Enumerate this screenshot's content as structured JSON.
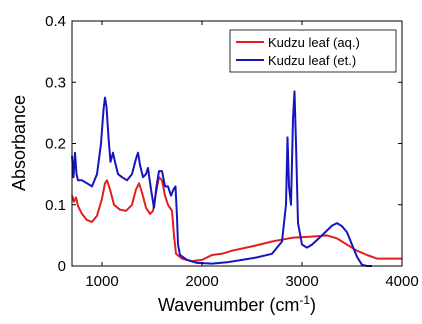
{
  "chart_data": {
    "type": "line",
    "title": "",
    "xlabel": "Wavenumber (cm",
    "xlabel_sup": "-1",
    "xlabel_suffix": ")",
    "ylabel": "Absorbance",
    "xlim": [
      700,
      4000
    ],
    "ylim": [
      0,
      0.4
    ],
    "xticks": [
      1000,
      2000,
      3000,
      4000
    ],
    "xtick_labels": [
      "1000",
      "2000",
      "3000",
      "4000"
    ],
    "yticks": [
      0,
      0.1,
      0.2,
      0.3,
      0.4
    ],
    "ytick_labels": [
      "0",
      "0.1",
      "0.2",
      "0.3",
      "0.4"
    ],
    "grid": false,
    "legend_position": "top-right",
    "series": [
      {
        "name": "Kudzu leaf (aq.)",
        "color": "#e02020",
        "points": [
          [
            700,
            0.115
          ],
          [
            720,
            0.105
          ],
          [
            740,
            0.112
          ],
          [
            760,
            0.098
          ],
          [
            800,
            0.085
          ],
          [
            850,
            0.075
          ],
          [
            900,
            0.072
          ],
          [
            950,
            0.082
          ],
          [
            1000,
            0.11
          ],
          [
            1030,
            0.135
          ],
          [
            1050,
            0.14
          ],
          [
            1080,
            0.125
          ],
          [
            1120,
            0.1
          ],
          [
            1180,
            0.092
          ],
          [
            1240,
            0.09
          ],
          [
            1300,
            0.1
          ],
          [
            1340,
            0.125
          ],
          [
            1370,
            0.135
          ],
          [
            1400,
            0.12
          ],
          [
            1440,
            0.095
          ],
          [
            1480,
            0.085
          ],
          [
            1510,
            0.09
          ],
          [
            1540,
            0.12
          ],
          [
            1570,
            0.145
          ],
          [
            1600,
            0.14
          ],
          [
            1630,
            0.115
          ],
          [
            1660,
            0.1
          ],
          [
            1700,
            0.09
          ],
          [
            1720,
            0.05
          ],
          [
            1740,
            0.02
          ],
          [
            1800,
            0.012
          ],
          [
            1900,
            0.008
          ],
          [
            2000,
            0.01
          ],
          [
            2100,
            0.018
          ],
          [
            2200,
            0.02
          ],
          [
            2300,
            0.025
          ],
          [
            2500,
            0.032
          ],
          [
            2700,
            0.04
          ],
          [
            2900,
            0.046
          ],
          [
            3100,
            0.048
          ],
          [
            3250,
            0.05
          ],
          [
            3350,
            0.045
          ],
          [
            3450,
            0.035
          ],
          [
            3550,
            0.025
          ],
          [
            3650,
            0.018
          ],
          [
            3750,
            0.012
          ],
          [
            3850,
            0.012
          ],
          [
            4000,
            0.012
          ]
        ]
      },
      {
        "name": "Kudzu leaf (et.)",
        "color": "#1515c0",
        "points": [
          [
            700,
            0.18
          ],
          [
            715,
            0.145
          ],
          [
            730,
            0.185
          ],
          [
            745,
            0.15
          ],
          [
            760,
            0.14
          ],
          [
            800,
            0.14
          ],
          [
            850,
            0.135
          ],
          [
            900,
            0.13
          ],
          [
            950,
            0.15
          ],
          [
            990,
            0.2
          ],
          [
            1015,
            0.255
          ],
          [
            1030,
            0.275
          ],
          [
            1045,
            0.26
          ],
          [
            1065,
            0.21
          ],
          [
            1085,
            0.17
          ],
          [
            1110,
            0.185
          ],
          [
            1130,
            0.17
          ],
          [
            1160,
            0.15
          ],
          [
            1200,
            0.145
          ],
          [
            1250,
            0.14
          ],
          [
            1300,
            0.15
          ],
          [
            1340,
            0.175
          ],
          [
            1360,
            0.185
          ],
          [
            1380,
            0.165
          ],
          [
            1410,
            0.145
          ],
          [
            1440,
            0.15
          ],
          [
            1460,
            0.16
          ],
          [
            1490,
            0.125
          ],
          [
            1520,
            0.095
          ],
          [
            1545,
            0.13
          ],
          [
            1570,
            0.155
          ],
          [
            1600,
            0.155
          ],
          [
            1630,
            0.13
          ],
          [
            1660,
            0.13
          ],
          [
            1690,
            0.115
          ],
          [
            1715,
            0.125
          ],
          [
            1735,
            0.13
          ],
          [
            1750,
            0.08
          ],
          [
            1760,
            0.035
          ],
          [
            1780,
            0.018
          ],
          [
            1850,
            0.01
          ],
          [
            1950,
            0.005
          ],
          [
            2100,
            0.004
          ],
          [
            2250,
            0.006
          ],
          [
            2400,
            0.01
          ],
          [
            2550,
            0.014
          ],
          [
            2700,
            0.02
          ],
          [
            2800,
            0.04
          ],
          [
            2840,
            0.1
          ],
          [
            2855,
            0.21
          ],
          [
            2870,
            0.13
          ],
          [
            2890,
            0.1
          ],
          [
            2910,
            0.24
          ],
          [
            2925,
            0.285
          ],
          [
            2940,
            0.2
          ],
          [
            2960,
            0.07
          ],
          [
            3000,
            0.035
          ],
          [
            3050,
            0.03
          ],
          [
            3100,
            0.035
          ],
          [
            3200,
            0.05
          ],
          [
            3300,
            0.066
          ],
          [
            3350,
            0.07
          ],
          [
            3400,
            0.065
          ],
          [
            3450,
            0.055
          ],
          [
            3500,
            0.035
          ],
          [
            3550,
            0.015
          ],
          [
            3600,
            0.002
          ],
          [
            3650,
            0.0
          ],
          [
            3700,
            0.0
          ]
        ]
      }
    ]
  }
}
